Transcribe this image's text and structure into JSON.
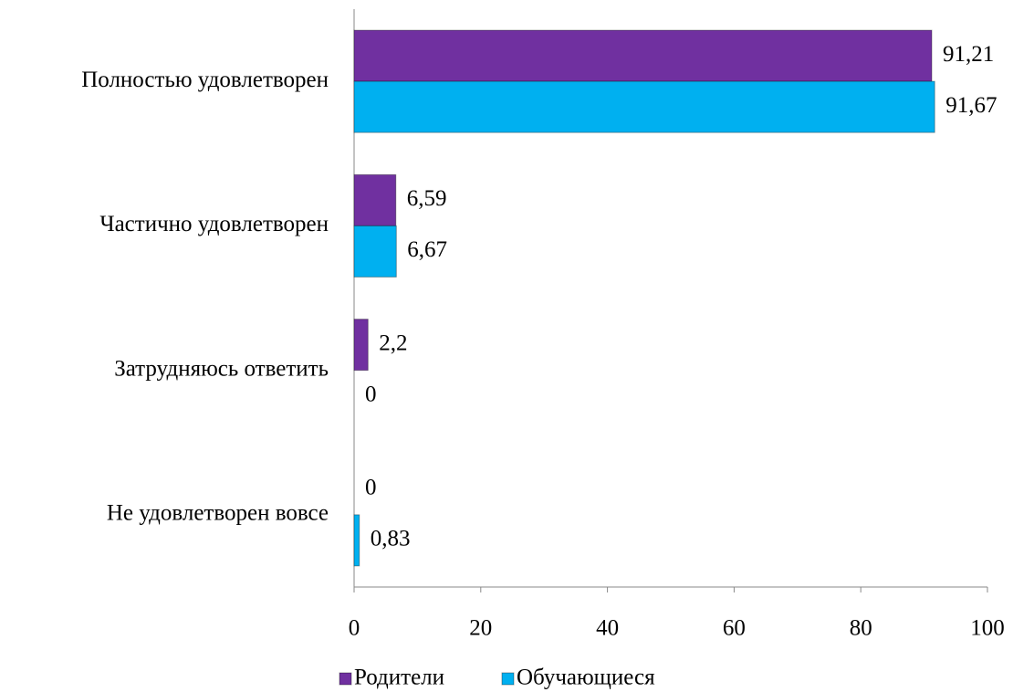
{
  "chart_data": {
    "type": "bar",
    "orientation": "horizontal",
    "categories": [
      "Полностью удовлетворен",
      "Частично удовлетворен",
      "Затрудняюсь ответить",
      "Не удовлетворен вовсе"
    ],
    "series": [
      {
        "name": "Родители",
        "color": "#7030a0",
        "values": [
          91.21,
          6.59,
          2.2,
          0
        ],
        "value_labels": [
          "91,21",
          "6,59",
          "2,2",
          "0"
        ]
      },
      {
        "name": "Обучающиеся",
        "color": "#00b0f0",
        "values": [
          91.67,
          6.67,
          0,
          0.83
        ],
        "value_labels": [
          "91,67",
          "6,67",
          "0",
          "0,83"
        ]
      }
    ],
    "xlim": [
      0,
      100
    ],
    "xticks": [
      0,
      20,
      40,
      60,
      80,
      100
    ],
    "grid": false,
    "legend": "bottom"
  }
}
